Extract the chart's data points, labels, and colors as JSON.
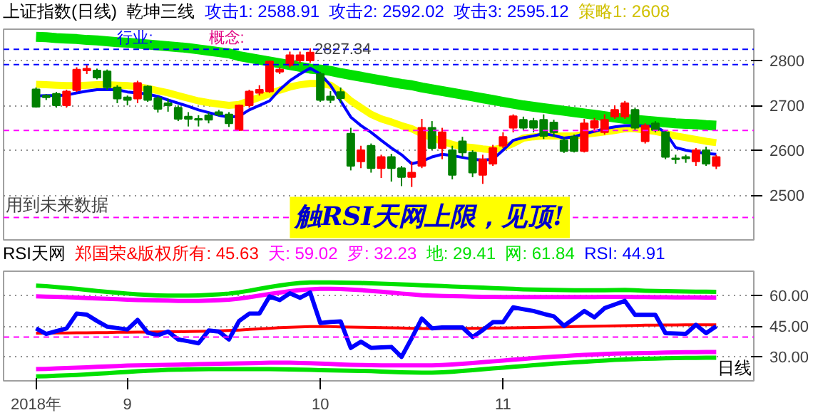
{
  "chart_data": [
    {
      "type": "candlestick",
      "title": "上证指数(日线)",
      "subtitle": "乾坤三线",
      "categories": [
        null,
        null,
        null,
        null,
        null,
        null,
        null,
        null,
        null,
        null,
        null,
        null,
        null,
        null,
        null,
        null,
        null,
        null,
        null,
        null,
        null,
        null,
        null,
        null,
        null,
        null,
        null,
        null,
        null,
        null,
        null,
        null,
        null,
        null,
        null,
        null,
        null,
        null,
        null,
        null,
        null,
        null,
        null,
        null,
        null,
        null,
        null,
        null,
        null,
        null,
        null,
        null,
        null,
        null,
        null,
        null,
        null,
        null,
        null,
        null,
        null,
        null,
        null,
        null,
        null,
        null,
        null,
        null
      ],
      "ohlc": [
        [
          2736,
          2740,
          2695,
          2697
        ],
        [
          2722,
          2725,
          2712,
          2718
        ],
        [
          2726,
          2730,
          2695,
          2700
        ],
        [
          2700,
          2735,
          2695,
          2731
        ],
        [
          2734,
          2785,
          2730,
          2780
        ],
        [
          2778,
          2790,
          2770,
          2782
        ],
        [
          2778,
          2782,
          2758,
          2762
        ],
        [
          2776,
          2780,
          2735,
          2740
        ],
        [
          2740,
          2745,
          2705,
          2715
        ],
        [
          2718,
          2722,
          2700,
          2712
        ],
        [
          2715,
          2755,
          2705,
          2750
        ],
        [
          2742,
          2745,
          2708,
          2712
        ],
        [
          2716,
          2720,
          2684,
          2692
        ],
        [
          2705,
          2715,
          2686,
          2700
        ],
        [
          2695,
          2700,
          2665,
          2670
        ],
        [
          2675,
          2685,
          2653,
          2670
        ],
        [
          2670,
          2678,
          2653,
          2668
        ],
        [
          2678,
          2684,
          2660,
          2668
        ],
        [
          2685,
          2690,
          2676,
          2680
        ],
        [
          2680,
          2685,
          2652,
          2660
        ],
        [
          2645,
          2702,
          2643,
          2700
        ],
        [
          2700,
          2735,
          2695,
          2731
        ],
        [
          2728,
          2745,
          2722,
          2735
        ],
        [
          2731,
          2800,
          2728,
          2798
        ],
        [
          2775,
          2785,
          2770,
          2780
        ],
        [
          2790,
          2820,
          2785,
          2812
        ],
        [
          2800,
          2820,
          2795,
          2812
        ],
        [
          2800,
          2827.34,
          2795,
          2818
        ],
        [
          2770,
          2775,
          2708,
          2712
        ],
        [
          2720,
          2732,
          2705,
          2712
        ],
        [
          2730,
          2740,
          2705,
          2716
        ],
        [
          2637,
          2650,
          2555,
          2565
        ],
        [
          2575,
          2610,
          2560,
          2600
        ],
        [
          2610,
          2615,
          2550,
          2560
        ],
        [
          2560,
          2590,
          2538,
          2585
        ],
        [
          2585,
          2592,
          2530,
          2560
        ],
        [
          2560,
          2565,
          2520,
          2540
        ],
        [
          2540,
          2575,
          2518,
          2550
        ],
        [
          2565,
          2670,
          2560,
          2650
        ],
        [
          2650,
          2665,
          2600,
          2605
        ],
        [
          2605,
          2650,
          2580,
          2640
        ],
        [
          2600,
          2610,
          2535,
          2545
        ],
        [
          2620,
          2630,
          2585,
          2595
        ],
        [
          2595,
          2600,
          2540,
          2550
        ],
        [
          2545,
          2590,
          2525,
          2580
        ],
        [
          2570,
          2612,
          2565,
          2605
        ],
        [
          2610,
          2640,
          2605,
          2630
        ],
        [
          2650,
          2680,
          2640,
          2676
        ],
        [
          2668,
          2675,
          2645,
          2650
        ],
        [
          2665,
          2672,
          2640,
          2650
        ],
        [
          2668,
          2680,
          2625,
          2632
        ],
        [
          2662,
          2668,
          2630,
          2640
        ],
        [
          2622,
          2628,
          2594,
          2598
        ],
        [
          2630,
          2635,
          2595,
          2598
        ],
        [
          2598,
          2670,
          2595,
          2660
        ],
        [
          2650,
          2672,
          2640,
          2665
        ],
        [
          2640,
          2680,
          2635,
          2668
        ],
        [
          2675,
          2700,
          2670,
          2690
        ],
        [
          2675,
          2710,
          2670,
          2705
        ],
        [
          2690,
          2695,
          2645,
          2650
        ],
        [
          2620,
          2660,
          2615,
          2655
        ],
        [
          2660,
          2665,
          2640,
          2645
        ],
        [
          2640,
          2645,
          2580,
          2585
        ],
        [
          2582,
          2590,
          2570,
          2580
        ],
        [
          2585,
          2590,
          2572,
          2582
        ],
        [
          2575,
          2605,
          2565,
          2600
        ],
        [
          2600,
          2608,
          2565,
          2570
        ],
        [
          2565,
          2590,
          2558,
          2585
        ]
      ],
      "series": [
        {
          "type": "line",
          "color": "#00e000",
          "values": [
            2853,
            2852,
            2850,
            2849,
            2848,
            2846,
            2845,
            2843,
            2841,
            2840,
            2838,
            2836,
            2834,
            2832,
            2830,
            2828,
            2825,
            2822,
            2819,
            2816,
            2810,
            2806,
            2802,
            2798,
            2794,
            2790,
            2786,
            2782,
            2780,
            2777,
            2772,
            2768,
            2764,
            2760,
            2756,
            2752,
            2748,
            2745,
            2740,
            2736,
            2732,
            2728,
            2724,
            2720,
            2716,
            2712,
            2708,
            2704,
            2700,
            2697,
            2694,
            2691,
            2688,
            2685,
            2682,
            2679,
            2676,
            2673,
            2670,
            2668,
            2666,
            2664,
            2662,
            2660,
            2659,
            2658,
            2656,
            2655
          ]
        },
        {
          "type": "line",
          "color": "#ffff00",
          "values": [
            2747,
            2746,
            2745,
            2744,
            2744,
            2745,
            2746,
            2746,
            2745,
            2744,
            2742,
            2738,
            2733,
            2728,
            2722,
            2716,
            2710,
            2706,
            2703,
            2700,
            2702,
            2710,
            2718,
            2726,
            2734,
            2741,
            2746,
            2749,
            2749,
            2745,
            2730,
            2710,
            2695,
            2680,
            2670,
            2663,
            2655,
            2648,
            2637,
            2628,
            2620,
            2613,
            2608,
            2606,
            2603,
            2601,
            2606,
            2615,
            2627,
            2630,
            2632,
            2632,
            2632,
            2632,
            2635,
            2638,
            2641,
            2644,
            2648,
            2648,
            2645,
            2642,
            2637,
            2632,
            2628,
            2624,
            2620,
            2617
          ]
        },
        {
          "type": "line",
          "color": "#0000ff",
          "values": [
            2721,
            2722,
            2722,
            2723,
            2728,
            2732,
            2735,
            2735,
            2735,
            2730,
            2728,
            2725,
            2720,
            2712,
            2705,
            2698,
            2690,
            2684,
            2678,
            2674,
            2676,
            2690,
            2700,
            2710,
            2735,
            2755,
            2770,
            2783,
            2770,
            2745,
            2710,
            2674,
            2655,
            2640,
            2622,
            2605,
            2590,
            2570,
            2575,
            2585,
            2591,
            2588,
            2584,
            2580,
            2578,
            2580,
            2600,
            2622,
            2628,
            2632,
            2637,
            2633,
            2627,
            2630,
            2637,
            2642,
            2648,
            2652,
            2655,
            2655,
            2654,
            2653,
            2640,
            2606,
            2600,
            2596,
            2593,
            2591
          ]
        }
      ],
      "ylim": [
        2400,
        2870
      ],
      "yticks": [
        2500,
        2600,
        2700,
        2800
      ],
      "grid": "y",
      "tick_labels": "y",
      "ref_lines": [
        {
          "axis": "y",
          "value": 2825,
          "color": "#0000ff",
          "line_style": "dashed"
        },
        {
          "axis": "y",
          "value": 2791,
          "color": "#0000ff",
          "line_style": "dashed"
        },
        {
          "axis": "y",
          "value": 2644,
          "color": "#ff00ff",
          "line_style": "dashed"
        },
        {
          "axis": "y",
          "value": 2450,
          "color": "#ff00ff",
          "line_style": "dashed"
        }
      ],
      "annotations": [
        "攻击1: 2588.91",
        "攻击2: 2592.02",
        "攻击3: 2595.12",
        "策略1: 2608",
        "行业:",
        "概念:",
        {
          "text": "2827.34",
          "y": 2827.34
        },
        "用到未来数据",
        "触RSI天网上限，见顶!"
      ]
    },
    {
      "type": "line",
      "title": "RSI天网",
      "categories": [
        "2018年",
        null,
        null,
        null,
        null,
        null,
        null,
        null,
        null,
        "9",
        null,
        null,
        null,
        null,
        null,
        null,
        null,
        null,
        null,
        null,
        null,
        null,
        null,
        null,
        null,
        null,
        null,
        null,
        "10",
        null,
        null,
        null,
        null,
        null,
        null,
        null,
        null,
        null,
        null,
        null,
        null,
        null,
        null,
        null,
        null,
        null,
        "11",
        null,
        null,
        null,
        null,
        null,
        null,
        null,
        null,
        null,
        null,
        null,
        null,
        null,
        null,
        null,
        null,
        null,
        null,
        null,
        null,
        null
      ],
      "series": [
        {
          "color": "#ff0000",
          "values": [
            41.5,
            41.5,
            41.6,
            41.6,
            41.7,
            41.7,
            41.8,
            41.8,
            41.9,
            41.9,
            42.0,
            42.0,
            42.1,
            42.2,
            42.2,
            42.3,
            42.4,
            42.5,
            42.6,
            42.8,
            43.0,
            43.3,
            43.6,
            43.9,
            44.2,
            44.4,
            44.6,
            44.7,
            44.7,
            44.7,
            44.6,
            44.5,
            44.4,
            44.3,
            44.2,
            44.1,
            44.0,
            43.9,
            43.8,
            43.8,
            43.8,
            43.8,
            43.8,
            43.9,
            43.9,
            44.0,
            44.0,
            44.1,
            44.2,
            44.3,
            44.4,
            44.5,
            44.6,
            44.7,
            44.8,
            44.9,
            45.0,
            45.1,
            45.2,
            45.3,
            45.4,
            45.4,
            45.5,
            45.5,
            45.6,
            45.6,
            45.6,
            45.63
          ]
        },
        {
          "color": "#ff00ff",
          "values": [
            59.6,
            59.5,
            59.4,
            59.2,
            59.0,
            58.8,
            58.6,
            58.4,
            58.2,
            58.0,
            57.8,
            57.7,
            57.6,
            57.5,
            57.4,
            57.4,
            57.4,
            57.5,
            57.7,
            58.0,
            58.5,
            59.2,
            60.0,
            60.8,
            61.5,
            62.2,
            62.7,
            63.1,
            63.3,
            63.3,
            63.2,
            63.0,
            62.7,
            62.3,
            61.9,
            61.5,
            61.0,
            60.6,
            60.2,
            60.0,
            59.8,
            59.7,
            59.6,
            59.5,
            59.4,
            59.4,
            59.3,
            59.3,
            59.3,
            59.3,
            59.3,
            59.3,
            59.3,
            59.3,
            59.3,
            59.3,
            59.4,
            59.4,
            59.4,
            59.3,
            59.3,
            59.2,
            59.2,
            59.1,
            59.1,
            59.1,
            59.0,
            59.02
          ]
        },
        {
          "color": "#ff00ff",
          "values": [
            23.8,
            23.9,
            24.1,
            24.3,
            24.5,
            24.7,
            24.9,
            25.1,
            25.3,
            25.5,
            25.6,
            25.7,
            25.8,
            25.9,
            26.0,
            26.1,
            26.2,
            26.3,
            26.4,
            26.5,
            26.6,
            26.7,
            26.8,
            26.9,
            26.9,
            26.9,
            26.8,
            26.7,
            26.5,
            26.3,
            26.1,
            25.9,
            25.8,
            25.7,
            25.6,
            25.6,
            25.6,
            25.6,
            25.6,
            25.6,
            25.8,
            26.1,
            26.4,
            26.8,
            27.2,
            27.6,
            28.0,
            28.4,
            28.8,
            29.2,
            29.6,
            29.9,
            30.2,
            30.5,
            30.8,
            31.0,
            31.2,
            31.4,
            31.5,
            31.6,
            31.7,
            31.8,
            31.9,
            32.0,
            32.1,
            32.1,
            32.2,
            32.23
          ]
        },
        {
          "color": "#00e000",
          "values": [
            20.2,
            20.3,
            20.5,
            20.7,
            20.9,
            21.2,
            21.5,
            21.8,
            22.1,
            22.4,
            22.7,
            23.0,
            23.2,
            23.4,
            23.5,
            23.6,
            23.7,
            23.8,
            23.8,
            23.8,
            23.8,
            23.8,
            23.8,
            23.8,
            23.7,
            23.6,
            23.5,
            23.4,
            23.3,
            23.2,
            23.1,
            23.0,
            22.9,
            22.8,
            22.6,
            22.4,
            22.2,
            22.1,
            22.0,
            22.0,
            22.2,
            22.5,
            22.9,
            23.3,
            23.7,
            24.1,
            24.5,
            24.9,
            25.3,
            25.7,
            26.1,
            26.5,
            26.8,
            27.1,
            27.4,
            27.7,
            28.0,
            28.3,
            28.5,
            28.7,
            28.9,
            29.0,
            29.1,
            29.2,
            29.3,
            29.3,
            29.4,
            29.41
          ]
        },
        {
          "color": "#00e000",
          "values": [
            64.9,
            64.6,
            64.2,
            63.8,
            63.3,
            62.8,
            62.3,
            61.8,
            61.4,
            61.0,
            60.6,
            60.3,
            60.1,
            60.0,
            60.0,
            60.0,
            60.1,
            60.3,
            60.6,
            61.0,
            61.6,
            62.4,
            63.3,
            64.2,
            65.0,
            65.7,
            66.2,
            66.5,
            66.5,
            66.5,
            66.4,
            66.3,
            66.2,
            66.0,
            65.9,
            65.7,
            65.5,
            65.3,
            65.1,
            64.9,
            64.7,
            64.5,
            64.3,
            64.1,
            63.9,
            63.7,
            63.5,
            63.3,
            63.1,
            63.0,
            62.9,
            62.8,
            62.7,
            62.6,
            62.6,
            62.6,
            62.6,
            62.7,
            62.8,
            62.6,
            62.4,
            62.3,
            62.2,
            62.1,
            62.0,
            61.9,
            61.9,
            61.84
          ]
        },
        {
          "color": "#0000ff",
          "values": [
            43.8,
            41.1,
            42.5,
            43.8,
            51.1,
            50.6,
            47.5,
            44.7,
            44.0,
            43.3,
            48.0,
            41.7,
            40.5,
            42.3,
            38.4,
            37.5,
            36.5,
            42.8,
            42.3,
            38.4,
            47.5,
            51.1,
            51.1,
            59.6,
            57.8,
            61.1,
            58.9,
            61.5,
            46.5,
            47.0,
            47.3,
            34.2,
            37.3,
            34.2,
            34.5,
            34.7,
            29.8,
            39.0,
            48.7,
            43.9,
            44.3,
            44.3,
            44.3,
            39.6,
            43.0,
            46.9,
            46.9,
            54.2,
            53.3,
            52.4,
            51.0,
            49.8,
            45.1,
            48.7,
            52.4,
            49.3,
            53.8,
            55.6,
            57.4,
            50.5,
            50.5,
            50.5,
            41.5,
            41.3,
            41.1,
            45.6,
            41.5,
            44.91
          ]
        }
      ],
      "ylim": [
        18,
        72
      ],
      "yticks": [
        {
          "value": 30,
          "label": "30.00"
        },
        {
          "value": 45,
          "label": "45.00"
        },
        {
          "value": 60,
          "label": "60.00"
        }
      ],
      "grid": "y",
      "ref_lines": [
        {
          "axis": "y",
          "value": 39.6,
          "color": "#ff00ff",
          "line_style": "dashed"
        }
      ],
      "annotations": [
        "郑国荣&版权所有: 45.63",
        "天: 59.02",
        "罗: 32.23",
        "地: 29.41",
        "网: 61.84",
        "RSI: 44.91",
        "日线"
      ]
    }
  ]
}
